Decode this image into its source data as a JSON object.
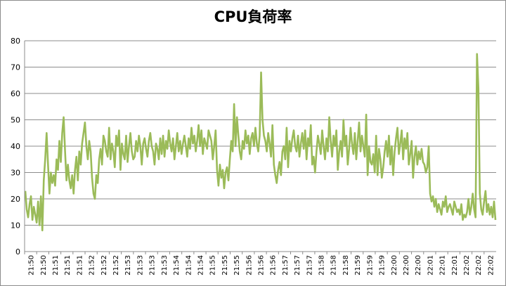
{
  "chart_data": {
    "type": "line",
    "title": "CPU負荷率",
    "xlabel": "",
    "ylabel": "",
    "ylim": [
      0,
      80
    ],
    "y_ticks": [
      0,
      10,
      20,
      30,
      40,
      50,
      60,
      70,
      80
    ],
    "grid": true,
    "legend": "none",
    "x_tick_labels": [
      "21:50",
      "21:50",
      "21:51",
      "21:51",
      "21:51",
      "21:52",
      "21:52",
      "21:52",
      "21:53",
      "21:53",
      "21:53",
      "21:53",
      "21:54",
      "21:54",
      "21:54",
      "21:55",
      "21:55",
      "21:55",
      "21:56",
      "21:56",
      "21:56",
      "21:57",
      "21:57",
      "21:57",
      "21:58",
      "21:58",
      "21:58",
      "21:59",
      "21:59",
      "21:59",
      "22:00",
      "22:00",
      "22:00",
      "22:01",
      "22:01",
      "22:01",
      "22:02",
      "22:02",
      "22:02"
    ],
    "series": [
      {
        "color": "#9bbb59",
        "values": [
          23,
          16,
          13,
          18,
          21,
          12,
          17,
          14,
          11,
          19,
          10,
          21,
          8,
          27,
          35,
          45,
          33,
          22,
          30,
          26,
          29,
          25,
          35,
          31,
          42,
          34,
          45,
          51,
          38,
          27,
          33,
          27,
          24,
          29,
          22,
          31,
          36,
          27,
          38,
          33,
          41,
          45,
          49,
          40,
          35,
          42,
          38,
          28,
          22,
          20,
          29,
          26,
          35,
          39,
          33,
          44,
          42,
          38,
          36,
          47,
          35,
          41,
          38,
          32,
          44,
          40,
          46,
          31,
          41,
          37,
          35,
          44,
          34,
          40,
          45,
          38,
          35,
          36,
          42,
          38,
          44,
          40,
          33,
          41,
          43,
          39,
          36,
          42,
          45,
          40,
          38,
          33,
          41,
          39,
          35,
          43,
          37,
          44,
          36,
          42,
          39,
          46,
          41,
          38,
          43,
          35,
          40,
          45,
          38,
          42,
          37,
          41,
          44,
          40,
          36,
          43,
          39,
          47,
          41,
          44,
          38,
          42,
          48,
          40,
          46,
          37,
          43,
          41,
          39,
          46,
          44,
          42,
          35,
          40,
          46,
          31,
          25,
          33,
          28,
          31,
          24,
          30,
          32,
          27,
          35,
          42,
          38,
          56,
          40,
          51,
          44,
          38,
          35,
          42,
          39,
          46,
          41,
          44,
          37,
          43,
          45,
          40,
          47,
          41,
          38,
          44,
          68,
          50,
          44,
          42,
          38,
          45,
          41,
          36,
          48,
          33,
          29,
          26,
          31,
          34,
          29,
          38,
          40,
          35,
          47,
          32,
          42,
          38,
          43,
          46,
          40,
          38,
          44,
          36,
          41,
          45,
          39,
          46,
          35,
          43,
          40,
          48,
          33,
          36,
          30,
          38,
          44,
          41,
          37,
          46,
          40,
          35,
          43,
          38,
          51,
          42,
          36,
          44,
          40,
          46,
          31,
          38,
          42,
          36,
          50,
          40,
          44,
          33,
          39,
          47,
          41,
          37,
          45,
          35,
          42,
          49,
          38,
          44,
          40,
          36,
          52,
          29,
          40,
          34,
          33,
          37,
          30,
          44,
          29,
          39,
          35,
          28,
          32,
          38,
          42,
          36,
          44,
          33,
          40,
          29,
          38,
          43,
          47,
          37,
          41,
          46,
          35,
          43,
          39,
          45,
          33,
          37,
          42,
          28,
          36,
          40,
          33,
          38,
          35,
          39,
          34,
          33,
          30,
          32,
          40,
          22,
          19,
          21,
          17,
          20,
          15,
          18,
          16,
          14,
          19,
          17,
          21,
          15,
          17,
          18,
          16,
          14,
          19,
          17,
          15,
          16,
          14,
          18,
          12,
          14,
          13,
          15,
          20,
          14,
          17,
          22,
          16,
          13,
          75,
          62,
          22,
          16,
          14,
          19,
          23,
          15,
          18,
          14,
          17,
          13,
          19,
          12
        ]
      }
    ]
  }
}
